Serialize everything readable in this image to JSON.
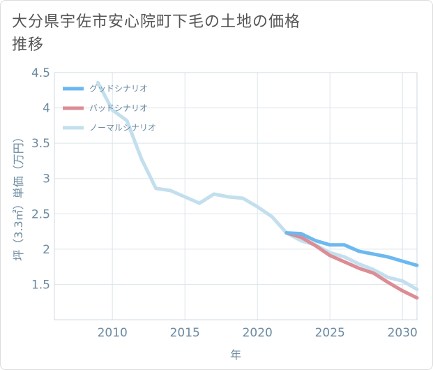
{
  "title": "大分県宇佐市安心院町下毛の土地の価格推移",
  "chart_data": {
    "type": "line",
    "title": "大分県宇佐市安心院町下毛の土地の価格推移",
    "xlabel": "年",
    "ylabel": "坪（3.3㎡）単価（万円）",
    "xlim": [
      2006,
      2031
    ],
    "ylim": [
      1,
      4.5
    ],
    "x_ticks": [
      2010,
      2015,
      2020,
      2025,
      2030
    ],
    "y_ticks": [
      1.5,
      2,
      2.5,
      3,
      3.5,
      4,
      4.5
    ],
    "grid": true,
    "legend_position": "top-left",
    "series": [
      {
        "name": "グッドシナリオ",
        "color": "#6cb8ef",
        "x": [
          2022,
          2023,
          2024,
          2025,
          2026,
          2027,
          2028,
          2029,
          2030,
          2031
        ],
        "y": [
          2.23,
          2.22,
          2.12,
          2.06,
          2.06,
          1.97,
          1.93,
          1.89,
          1.83,
          1.77
        ]
      },
      {
        "name": "バッドシナリオ",
        "color": "#dc8c95",
        "x": [
          2022,
          2023,
          2024,
          2025,
          2026,
          2027,
          2028,
          2029,
          2030,
          2031
        ],
        "y": [
          2.23,
          2.17,
          2.05,
          1.91,
          1.82,
          1.73,
          1.66,
          1.53,
          1.41,
          1.31
        ]
      },
      {
        "name": "ノーマルシナリオ",
        "color": "#c3dfee",
        "x": [
          2009,
          2010,
          2011,
          2012,
          2013,
          2014,
          2015,
          2016,
          2017,
          2018,
          2019,
          2020,
          2021,
          2022,
          2023,
          2024,
          2025,
          2026,
          2027,
          2028,
          2029,
          2030,
          2031
        ],
        "y": [
          4.36,
          3.97,
          3.82,
          3.28,
          2.86,
          2.83,
          2.74,
          2.65,
          2.78,
          2.74,
          2.72,
          2.6,
          2.46,
          2.23,
          2.12,
          2.06,
          1.95,
          1.89,
          1.79,
          1.71,
          1.6,
          1.55,
          1.43
        ]
      }
    ]
  }
}
